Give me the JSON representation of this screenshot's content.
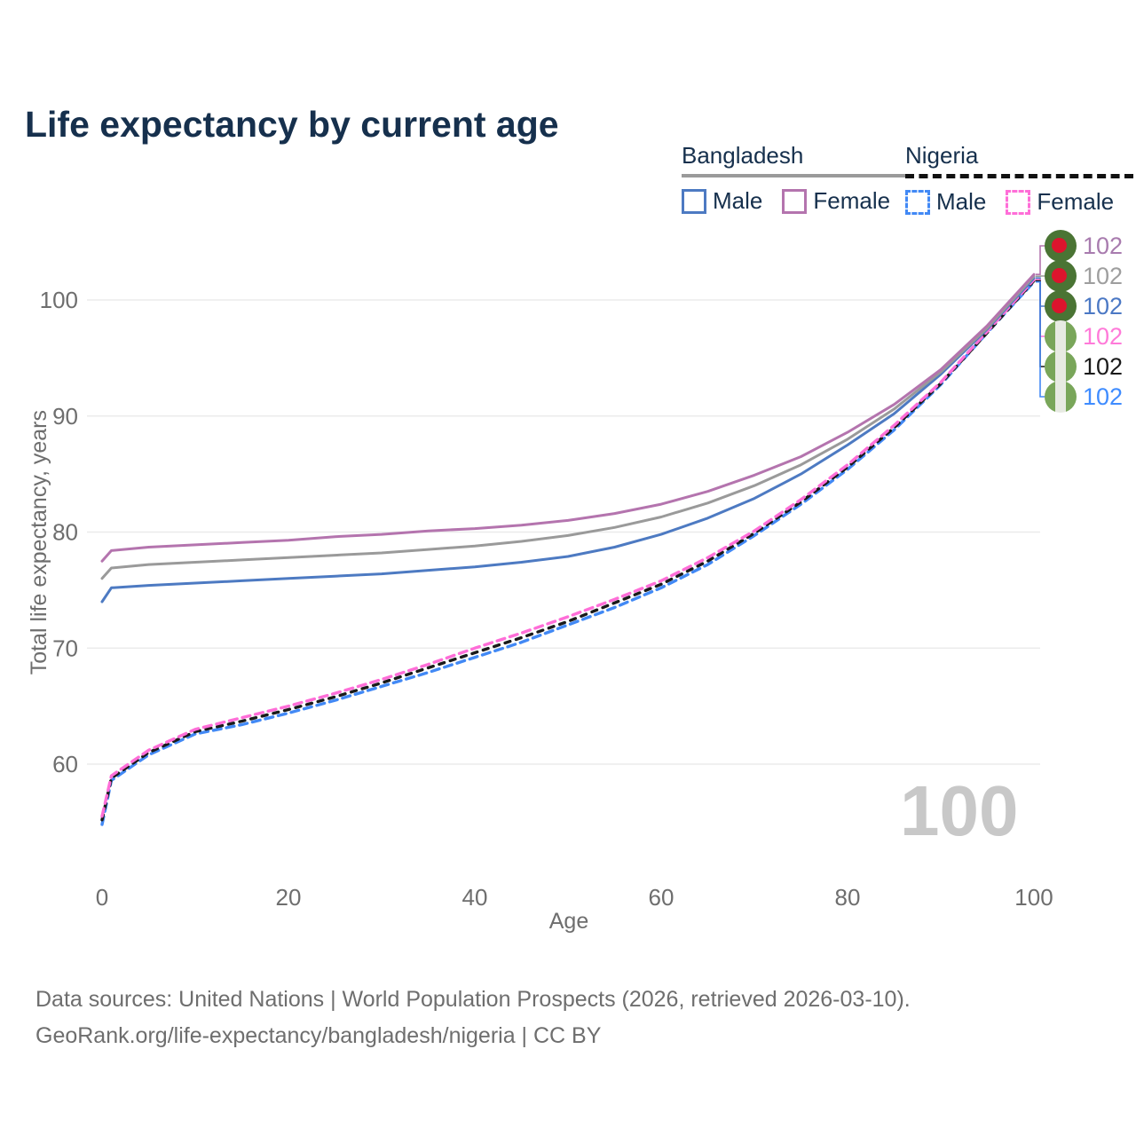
{
  "header": {
    "title": "Life expectancy by current age"
  },
  "legend": {
    "groups": [
      {
        "id": "bangladesh",
        "label": "Bangladesh",
        "line_style": "solid",
        "line_color": "#9a9a9a",
        "items": [
          {
            "label": "Male",
            "color": "#4d7ac2",
            "dashed": false
          },
          {
            "label": "Female",
            "color": "#b474ae",
            "dashed": false
          }
        ]
      },
      {
        "id": "nigeria",
        "label": "Nigeria",
        "line_style": "dashed",
        "line_color": "#111111",
        "items": [
          {
            "label": "Male",
            "color": "#4289f5",
            "dashed": true
          },
          {
            "label": "Female",
            "color": "#ff6ed8",
            "dashed": true
          }
        ]
      }
    ]
  },
  "chart_data": {
    "type": "line",
    "title": "Life expectancy by current age",
    "xlabel": "Age",
    "ylabel": "Total life expectancy, years",
    "xlim": [
      0,
      100
    ],
    "ylim": [
      54,
      103
    ],
    "xticks": [
      0,
      20,
      40,
      60,
      80,
      100
    ],
    "yticks": [
      60,
      70,
      80,
      90,
      100
    ],
    "grid": "horizontal",
    "legend_position": "top-right",
    "x": [
      0,
      1,
      5,
      10,
      15,
      20,
      25,
      30,
      35,
      40,
      45,
      50,
      55,
      60,
      65,
      70,
      75,
      80,
      85,
      90,
      95,
      100
    ],
    "series": [
      {
        "id": "bangladesh-female",
        "country": "Bangladesh",
        "sex": "Female",
        "color": "#b474ae",
        "dash": "",
        "values": [
          77.5,
          78.4,
          78.7,
          78.9,
          79.1,
          79.3,
          79.6,
          79.8,
          80.1,
          80.3,
          80.6,
          81.0,
          81.6,
          82.4,
          83.5,
          84.9,
          86.5,
          88.6,
          91.0,
          94.0,
          97.8,
          102.2
        ]
      },
      {
        "id": "bangladesh-both",
        "country": "Bangladesh",
        "sex": "Both sexes",
        "color": "#9a9a9a",
        "dash": "",
        "values": [
          76.0,
          76.9,
          77.2,
          77.4,
          77.6,
          77.8,
          78.0,
          78.2,
          78.5,
          78.8,
          79.2,
          79.7,
          80.4,
          81.3,
          82.5,
          84.0,
          85.8,
          88.0,
          90.6,
          93.8,
          97.6,
          102.05
        ]
      },
      {
        "id": "bangladesh-male",
        "country": "Bangladesh",
        "sex": "Male",
        "color": "#4d7ac2",
        "dash": "",
        "values": [
          74.0,
          75.2,
          75.4,
          75.6,
          75.8,
          76.0,
          76.2,
          76.4,
          76.7,
          77.0,
          77.4,
          77.9,
          78.7,
          79.8,
          81.2,
          82.9,
          85.0,
          87.5,
          90.2,
          93.6,
          97.5,
          101.9
        ]
      },
      {
        "id": "nigeria-female",
        "country": "Nigeria",
        "sex": "Female",
        "color": "#ff6ed8",
        "dash": "9 6",
        "values": [
          55.5,
          59.0,
          61.2,
          63.0,
          64.0,
          65.0,
          66.1,
          67.3,
          68.6,
          70.0,
          71.3,
          72.7,
          74.2,
          75.8,
          77.8,
          80.1,
          82.8,
          85.8,
          89.2,
          92.9,
          97.3,
          101.75
        ]
      },
      {
        "id": "nigeria-both",
        "country": "Nigeria",
        "sex": "Both sexes",
        "color": "#1a1a1a",
        "dash": "6 7",
        "values": [
          55.2,
          58.8,
          61.0,
          62.8,
          63.7,
          64.7,
          65.8,
          67.0,
          68.3,
          69.6,
          70.9,
          72.3,
          73.9,
          75.5,
          77.5,
          79.9,
          82.6,
          85.6,
          89.0,
          92.8,
          97.2,
          101.65
        ]
      },
      {
        "id": "nigeria-male",
        "country": "Nigeria",
        "sex": "Male",
        "color": "#4289f5",
        "dash": "9 6",
        "values": [
          54.8,
          58.6,
          60.8,
          62.6,
          63.4,
          64.4,
          65.5,
          66.7,
          67.9,
          69.2,
          70.5,
          72.0,
          73.5,
          75.2,
          77.2,
          79.7,
          82.4,
          85.4,
          88.8,
          92.7,
          97.2,
          101.55
        ]
      }
    ]
  },
  "end_labels": [
    {
      "flag": "bangladesh",
      "series": "bangladesh-female",
      "value": "102",
      "color": "#a87bae"
    },
    {
      "flag": "bangladesh",
      "series": "bangladesh-both",
      "value": "102",
      "color": "#9e9e9e"
    },
    {
      "flag": "bangladesh",
      "series": "bangladesh-male",
      "value": "102",
      "color": "#4b78c4"
    },
    {
      "flag": "nigeria",
      "series": "nigeria-female",
      "value": "102",
      "color": "#ff7ad9"
    },
    {
      "flag": "nigeria",
      "series": "nigeria-both",
      "value": "102",
      "color": "#1a1a1a"
    },
    {
      "flag": "nigeria",
      "series": "nigeria-male",
      "value": "102",
      "color": "#3f8cff"
    }
  ],
  "watermark": "100",
  "footer": {
    "line1": "Data sources: United Nations | World Population Prospects (2026, retrieved 2026-03-10).",
    "line2": "GeoRank.org/life-expectancy/bangladesh/nigeria | CC BY"
  }
}
